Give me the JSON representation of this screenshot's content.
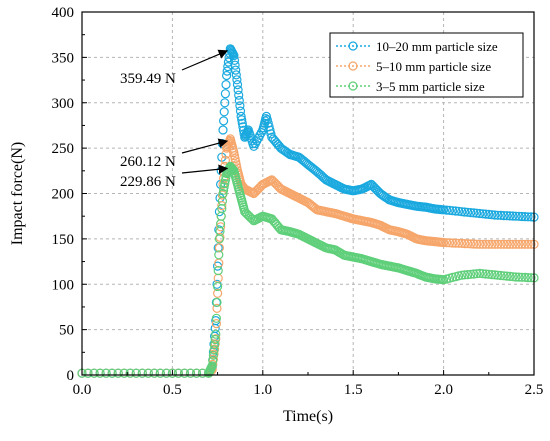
{
  "chart_data": {
    "type": "scatter",
    "xlabel": "Time(s)",
    "ylabel": "Impact force(N)",
    "xlim": [
      0,
      2.5
    ],
    "ylim": [
      0,
      400
    ],
    "xticks": [
      0.0,
      0.5,
      1.0,
      1.5,
      2.0,
      2.5
    ],
    "xtick_labels": [
      "0.0",
      "0.5",
      "1.0",
      "1.5",
      "2.0",
      "2.5"
    ],
    "yticks": [
      0,
      50,
      100,
      150,
      200,
      250,
      300,
      350,
      400
    ],
    "ytick_labels": [
      "0",
      "50",
      "100",
      "150",
      "200",
      "250",
      "300",
      "350",
      "400"
    ],
    "grid": true,
    "legend_position": "top-right",
    "series": [
      {
        "name": "10–20 mm particle size",
        "color": "#1aa9df",
        "points": [
          [
            0.0,
            2
          ],
          [
            0.1,
            2
          ],
          [
            0.2,
            2
          ],
          [
            0.3,
            2
          ],
          [
            0.4,
            2
          ],
          [
            0.5,
            2
          ],
          [
            0.6,
            2
          ],
          [
            0.7,
            2
          ],
          [
            0.72,
            8
          ],
          [
            0.74,
            60
          ],
          [
            0.76,
            180
          ],
          [
            0.78,
            270
          ],
          [
            0.8,
            330
          ],
          [
            0.82,
            359.49
          ],
          [
            0.84,
            352
          ],
          [
            0.86,
            320
          ],
          [
            0.88,
            285
          ],
          [
            0.9,
            262
          ],
          [
            0.92,
            270
          ],
          [
            0.95,
            252
          ],
          [
            1.0,
            270
          ],
          [
            1.02,
            285
          ],
          [
            1.05,
            262
          ],
          [
            1.1,
            250
          ],
          [
            1.15,
            243
          ],
          [
            1.2,
            240
          ],
          [
            1.25,
            232
          ],
          [
            1.3,
            224
          ],
          [
            1.35,
            215
          ],
          [
            1.4,
            210
          ],
          [
            1.45,
            205
          ],
          [
            1.5,
            203
          ],
          [
            1.55,
            205
          ],
          [
            1.6,
            210
          ],
          [
            1.65,
            200
          ],
          [
            1.7,
            193
          ],
          [
            1.75,
            190
          ],
          [
            1.8,
            188
          ],
          [
            1.85,
            186
          ],
          [
            1.9,
            185
          ],
          [
            1.95,
            183
          ],
          [
            2.0,
            182
          ],
          [
            2.1,
            180
          ],
          [
            2.2,
            178
          ],
          [
            2.3,
            176
          ],
          [
            2.4,
            175
          ],
          [
            2.5,
            174
          ]
        ]
      },
      {
        "name": "5–10 mm particle size",
        "color": "#f6a66a",
        "points": [
          [
            0.0,
            2
          ],
          [
            0.1,
            2
          ],
          [
            0.2,
            2
          ],
          [
            0.3,
            2
          ],
          [
            0.4,
            2
          ],
          [
            0.5,
            2
          ],
          [
            0.6,
            2
          ],
          [
            0.7,
            2
          ],
          [
            0.72,
            6
          ],
          [
            0.74,
            40
          ],
          [
            0.76,
            140
          ],
          [
            0.78,
            210
          ],
          [
            0.8,
            250
          ],
          [
            0.82,
            260.12
          ],
          [
            0.84,
            245
          ],
          [
            0.86,
            225
          ],
          [
            0.88,
            210
          ],
          [
            0.9,
            205
          ],
          [
            0.95,
            200
          ],
          [
            1.0,
            210
          ],
          [
            1.05,
            215
          ],
          [
            1.1,
            205
          ],
          [
            1.15,
            200
          ],
          [
            1.2,
            195
          ],
          [
            1.25,
            190
          ],
          [
            1.3,
            182
          ],
          [
            1.35,
            180
          ],
          [
            1.4,
            178
          ],
          [
            1.45,
            175
          ],
          [
            1.5,
            172
          ],
          [
            1.55,
            170
          ],
          [
            1.6,
            168
          ],
          [
            1.65,
            165
          ],
          [
            1.7,
            160
          ],
          [
            1.75,
            158
          ],
          [
            1.8,
            155
          ],
          [
            1.85,
            150
          ],
          [
            1.9,
            148
          ],
          [
            1.95,
            147
          ],
          [
            2.0,
            146
          ],
          [
            2.1,
            145
          ],
          [
            2.2,
            144
          ],
          [
            2.3,
            144
          ],
          [
            2.4,
            144
          ],
          [
            2.5,
            144
          ]
        ]
      },
      {
        "name": "3–5 mm particle size",
        "color": "#5fcf7a",
        "points": [
          [
            0.0,
            2
          ],
          [
            0.1,
            2
          ],
          [
            0.2,
            2
          ],
          [
            0.3,
            2
          ],
          [
            0.4,
            2
          ],
          [
            0.5,
            2
          ],
          [
            0.6,
            2
          ],
          [
            0.7,
            2
          ],
          [
            0.72,
            10
          ],
          [
            0.74,
            45
          ],
          [
            0.76,
            150
          ],
          [
            0.78,
            200
          ],
          [
            0.8,
            222
          ],
          [
            0.82,
            229.86
          ],
          [
            0.84,
            225
          ],
          [
            0.86,
            210
          ],
          [
            0.88,
            195
          ],
          [
            0.9,
            180
          ],
          [
            0.95,
            170
          ],
          [
            1.0,
            175
          ],
          [
            1.05,
            172
          ],
          [
            1.1,
            160
          ],
          [
            1.15,
            158
          ],
          [
            1.2,
            155
          ],
          [
            1.25,
            150
          ],
          [
            1.3,
            145
          ],
          [
            1.35,
            140
          ],
          [
            1.4,
            138
          ],
          [
            1.45,
            132
          ],
          [
            1.5,
            130
          ],
          [
            1.55,
            128
          ],
          [
            1.6,
            125
          ],
          [
            1.65,
            122
          ],
          [
            1.7,
            120
          ],
          [
            1.75,
            118
          ],
          [
            1.8,
            115
          ],
          [
            1.85,
            112
          ],
          [
            1.9,
            108
          ],
          [
            1.95,
            106
          ],
          [
            2.0,
            105
          ],
          [
            2.1,
            110
          ],
          [
            2.2,
            112
          ],
          [
            2.3,
            110
          ],
          [
            2.4,
            108
          ],
          [
            2.5,
            107
          ]
        ]
      }
    ],
    "annotations": [
      {
        "label": "359.49 N",
        "x": 0.82,
        "y": 359.49
      },
      {
        "label": "260.12 N",
        "x": 0.82,
        "y": 260.12
      },
      {
        "label": "229.86 N",
        "x": 0.82,
        "y": 229.86
      }
    ]
  }
}
